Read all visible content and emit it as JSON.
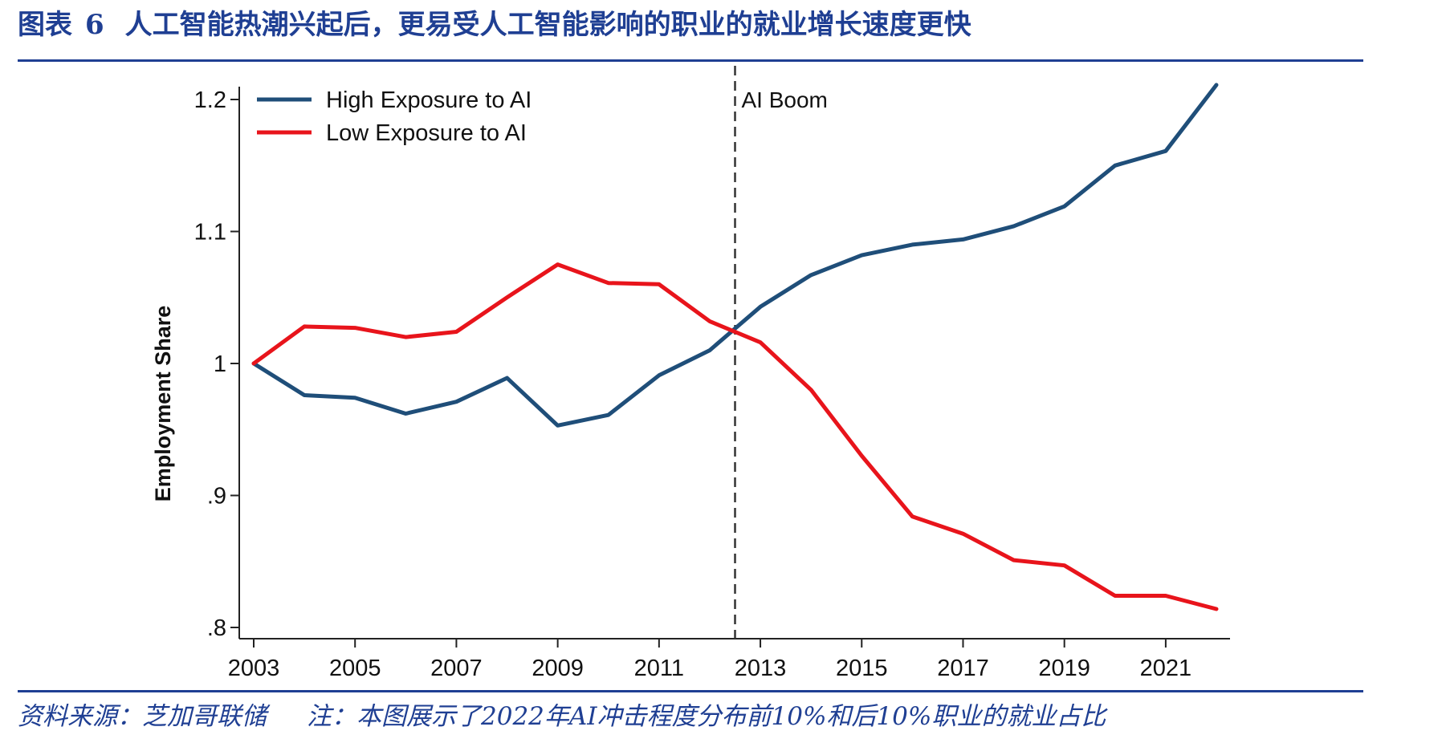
{
  "figure": {
    "label": "图表",
    "number": "6",
    "title": "人工智能热潮兴起后，更易受人工智能影响的职业的就业增长速度更快"
  },
  "footer": {
    "source": "资料来源：芝加哥联储",
    "note": "注：本图展示了2022年AI冲击程度分布前10%和后10%职业的就业占比"
  },
  "colors": {
    "brand": "#1f3f93",
    "high": "#1f4e79",
    "low": "#e8141b",
    "axis": "#222222"
  },
  "chart_data": {
    "type": "line",
    "title": "",
    "xlabel": "",
    "ylabel": "Employment Share",
    "x": [
      2003,
      2004,
      2005,
      2006,
      2007,
      2008,
      2009,
      2010,
      2011,
      2012,
      2013,
      2014,
      2015,
      2016,
      2017,
      2018,
      2019,
      2020,
      2021,
      2022
    ],
    "xlim": [
      2003,
      2022
    ],
    "ylim": [
      0.8,
      1.2
    ],
    "xticks": [
      {
        "value": 2003,
        "label": "2003"
      },
      {
        "value": 2005,
        "label": "2005"
      },
      {
        "value": 2007,
        "label": "2007"
      },
      {
        "value": 2009,
        "label": "2009"
      },
      {
        "value": 2011,
        "label": "2011"
      },
      {
        "value": 2013,
        "label": "2013"
      },
      {
        "value": 2015,
        "label": "2015"
      },
      {
        "value": 2017,
        "label": "2017"
      },
      {
        "value": 2019,
        "label": "2019"
      },
      {
        "value": 2021,
        "label": "2021"
      }
    ],
    "yticks": [
      {
        "value": 0.8,
        "label": ".8"
      },
      {
        "value": 0.9,
        "label": ".9"
      },
      {
        "value": 1.0,
        "label": "1"
      },
      {
        "value": 1.1,
        "label": "1.1"
      },
      {
        "value": 1.2,
        "label": "1.2"
      }
    ],
    "grid": false,
    "legend_position": "top-left",
    "series": [
      {
        "name": "High Exposure to AI",
        "color": "#1f4e79",
        "values": [
          1.0,
          0.976,
          0.974,
          0.962,
          0.971,
          0.989,
          0.953,
          0.961,
          0.991,
          1.01,
          1.043,
          1.067,
          1.082,
          1.09,
          1.094,
          1.104,
          1.119,
          1.15,
          1.161,
          1.211
        ]
      },
      {
        "name": "Low Exposure to AI",
        "color": "#e8141b",
        "values": [
          1.0,
          1.028,
          1.027,
          1.02,
          1.024,
          1.05,
          1.075,
          1.061,
          1.06,
          1.032,
          1.016,
          0.98,
          0.93,
          0.884,
          0.871,
          0.851,
          0.847,
          0.824,
          0.824,
          0.814
        ]
      }
    ],
    "annotations": [
      {
        "type": "vline",
        "x": 2012.5,
        "label": "AI Boom",
        "style": "dashed"
      }
    ]
  }
}
